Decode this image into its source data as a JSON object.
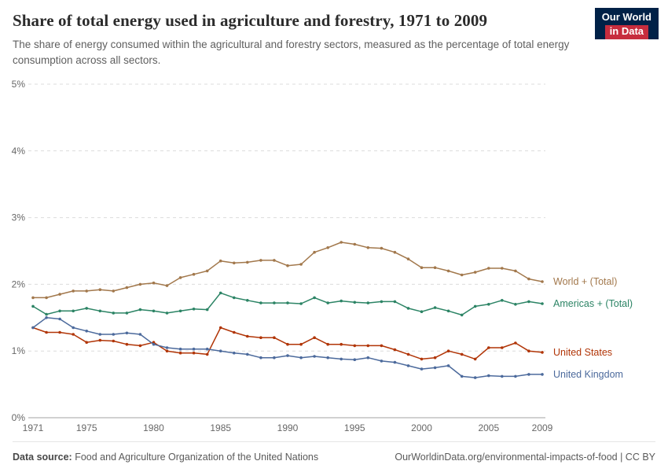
{
  "header": {
    "title": "Share of total energy used in agriculture and forestry, 1971 to 2009",
    "subtitle": "The share of energy consumed within the agricultural and forestry sectors, measured as the percentage of total energy consumption across all sectors.",
    "logo": {
      "line1": "Our World",
      "line2": "in Data",
      "bg": "#002147",
      "accent": "#c72d3e"
    }
  },
  "chart_data": {
    "type": "line",
    "title": "Share of total energy used in agriculture and forestry, 1971 to 2009",
    "xlabel": "",
    "ylabel": "",
    "ylim": [
      0,
      5
    ],
    "yticks": [
      0,
      1,
      2,
      3,
      4,
      5
    ],
    "ytick_suffix": "%",
    "xticks": [
      1971,
      1975,
      1980,
      1985,
      1990,
      1995,
      2000,
      2005,
      2009
    ],
    "grid": "horizontal-dashed",
    "legend_position": "right-of-line-ends",
    "x": [
      1971,
      1972,
      1973,
      1974,
      1975,
      1976,
      1977,
      1978,
      1979,
      1980,
      1981,
      1982,
      1983,
      1984,
      1985,
      1986,
      1987,
      1988,
      1989,
      1990,
      1991,
      1992,
      1993,
      1994,
      1995,
      1996,
      1997,
      1998,
      1999,
      2000,
      2001,
      2002,
      2003,
      2004,
      2005,
      2006,
      2007,
      2008,
      2009
    ],
    "series": [
      {
        "name": "World + (Total)",
        "color": "#a2784c",
        "values": [
          1.8,
          1.8,
          1.85,
          1.9,
          1.9,
          1.92,
          1.9,
          1.95,
          2.0,
          2.02,
          1.98,
          2.1,
          2.15,
          2.2,
          2.35,
          2.32,
          2.33,
          2.36,
          2.36,
          2.28,
          2.3,
          2.48,
          2.55,
          2.63,
          2.6,
          2.55,
          2.54,
          2.48,
          2.38,
          2.25,
          2.25,
          2.2,
          2.14,
          2.18,
          2.24,
          2.24,
          2.2,
          2.08,
          2.04
        ]
      },
      {
        "name": "Americas + (Total)",
        "color": "#2c8465",
        "values": [
          1.67,
          1.55,
          1.6,
          1.6,
          1.64,
          1.6,
          1.57,
          1.57,
          1.62,
          1.6,
          1.57,
          1.6,
          1.63,
          1.62,
          1.87,
          1.8,
          1.76,
          1.72,
          1.72,
          1.72,
          1.71,
          1.8,
          1.72,
          1.75,
          1.73,
          1.72,
          1.74,
          1.74,
          1.64,
          1.59,
          1.65,
          1.6,
          1.54,
          1.67,
          1.7,
          1.76,
          1.7,
          1.74,
          1.71
        ]
      },
      {
        "name": "United States",
        "color": "#b13507",
        "values": [
          1.35,
          1.28,
          1.28,
          1.25,
          1.13,
          1.16,
          1.15,
          1.1,
          1.08,
          1.13,
          1.0,
          0.97,
          0.97,
          0.95,
          1.35,
          1.28,
          1.22,
          1.2,
          1.2,
          1.1,
          1.1,
          1.2,
          1.1,
          1.1,
          1.08,
          1.08,
          1.08,
          1.02,
          0.95,
          0.88,
          0.9,
          1.0,
          0.95,
          0.88,
          1.05,
          1.05,
          1.12,
          1.0,
          0.98
        ]
      },
      {
        "name": "United Kingdom",
        "color": "#4c6a9c",
        "values": [
          1.35,
          1.5,
          1.48,
          1.35,
          1.3,
          1.25,
          1.25,
          1.27,
          1.25,
          1.1,
          1.05,
          1.03,
          1.03,
          1.03,
          1.0,
          0.97,
          0.95,
          0.9,
          0.9,
          0.93,
          0.9,
          0.92,
          0.9,
          0.88,
          0.87,
          0.9,
          0.85,
          0.83,
          0.78,
          0.73,
          0.75,
          0.78,
          0.62,
          0.6,
          0.63,
          0.62,
          0.62,
          0.65,
          0.65
        ]
      }
    ]
  },
  "axis_colors": {
    "grid": "#dcdcdc",
    "axis": "#a3a3a3",
    "tick_text": "#676767"
  },
  "footer": {
    "source_label": "Data source:",
    "source": " Food and Agriculture Organization of the United Nations",
    "right": "OurWorldinData.org/environmental-impacts-of-food | CC BY"
  }
}
